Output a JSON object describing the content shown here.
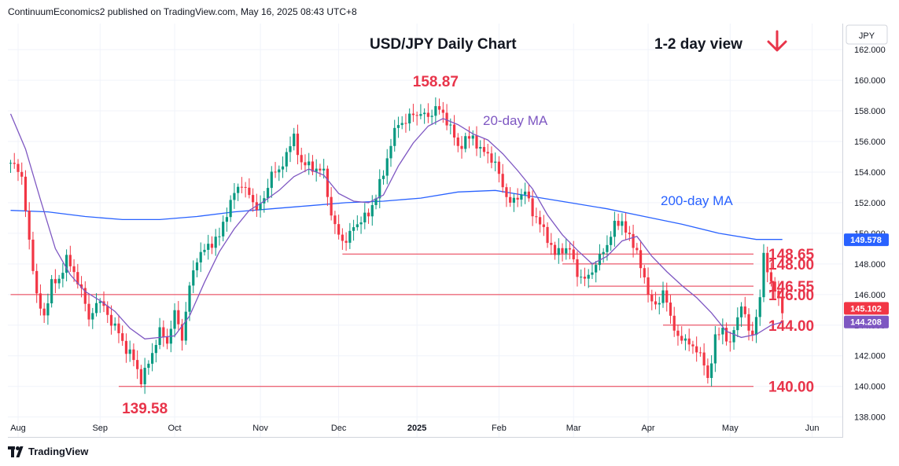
{
  "header": {
    "attribution": "ContinuumEconomics2 published on TradingView.com, May 16, 2025 08:43 UTC+8"
  },
  "footer": {
    "brand": "TradingView"
  },
  "chart_data": {
    "type": "candlestick",
    "title": "USD/JPY Daily Chart",
    "view_label": "1-2 day view",
    "view_arrow": "down",
    "currency": "JPY",
    "ylim": [
      136.7,
      163.7
    ],
    "y_ticks": [
      "138.000",
      "140.000",
      "142.000",
      "144.000",
      "146.000",
      "148.000",
      "150.000",
      "152.000",
      "154.000",
      "156.000",
      "158.000",
      "160.000",
      "162.000"
    ],
    "x_ticks": [
      {
        "label": "Aug",
        "index": 2,
        "bold": false
      },
      {
        "label": "Sep",
        "index": 24,
        "bold": false
      },
      {
        "label": "Oct",
        "index": 44,
        "bold": false
      },
      {
        "label": "Nov",
        "index": 67,
        "bold": false
      },
      {
        "label": "Dec",
        "index": 88,
        "bold": false
      },
      {
        "label": "2025",
        "index": 109,
        "bold": true
      },
      {
        "label": "Feb",
        "index": 131,
        "bold": false
      },
      {
        "label": "Mar",
        "index": 151,
        "bold": false
      },
      {
        "label": "Apr",
        "index": 171,
        "bold": false
      },
      {
        "label": "May",
        "index": 193,
        "bold": false
      },
      {
        "label": "Jun",
        "index": 215,
        "bold": false
      }
    ],
    "key_points": [
      [
        0,
        154.6
      ],
      [
        3,
        153.8
      ],
      [
        5,
        149.3
      ],
      [
        7,
        146.1
      ],
      [
        9,
        144.3
      ],
      [
        11,
        147.0
      ],
      [
        13,
        146.7
      ],
      [
        15,
        148.6
      ],
      [
        17,
        147.2
      ],
      [
        19,
        146.5
      ],
      [
        21,
        144.2
      ],
      [
        23,
        145.6
      ],
      [
        25,
        145.2
      ],
      [
        27,
        144.2
      ],
      [
        29,
        143.5
      ],
      [
        31,
        142.4
      ],
      [
        33,
        141.8
      ],
      [
        35,
        140.4
      ],
      [
        36,
        140.9
      ],
      [
        38,
        142.2
      ],
      [
        40,
        143.6
      ],
      [
        42,
        142.9
      ],
      [
        44,
        144.8
      ],
      [
        46,
        143.2
      ],
      [
        48,
        146.5
      ],
      [
        50,
        148.4
      ],
      [
        52,
        148.9
      ],
      [
        54,
        149.4
      ],
      [
        56,
        149.8
      ],
      [
        58,
        151.4
      ],
      [
        60,
        152.6
      ],
      [
        62,
        153.3
      ],
      [
        64,
        152.4
      ],
      [
        66,
        151.7
      ],
      [
        68,
        152.1
      ],
      [
        70,
        154.1
      ],
      [
        72,
        153.9
      ],
      [
        74,
        155.3
      ],
      [
        76,
        156.2
      ],
      [
        78,
        154.6
      ],
      [
        80,
        154.4
      ],
      [
        82,
        154.2
      ],
      [
        84,
        154.0
      ],
      [
        86,
        151.2
      ],
      [
        88,
        149.8
      ],
      [
        90,
        149.5
      ],
      [
        92,
        150.4
      ],
      [
        94,
        150.9
      ],
      [
        96,
        151.2
      ],
      [
        98,
        152.5
      ],
      [
        100,
        153.9
      ],
      [
        102,
        155.9
      ],
      [
        104,
        157.2
      ],
      [
        106,
        157.3
      ],
      [
        108,
        157.8
      ],
      [
        110,
        157.8
      ],
      [
        112,
        157.6
      ],
      [
        114,
        158.2
      ],
      [
        116,
        157.8
      ],
      [
        118,
        156.9
      ],
      [
        120,
        155.6
      ],
      [
        122,
        156.1
      ],
      [
        124,
        156.3
      ],
      [
        126,
        155.4
      ],
      [
        128,
        155.2
      ],
      [
        130,
        154.5
      ],
      [
        132,
        153.1
      ],
      [
        134,
        151.9
      ],
      [
        136,
        152.4
      ],
      [
        138,
        152.7
      ],
      [
        140,
        151.4
      ],
      [
        142,
        150.6
      ],
      [
        144,
        149.7
      ],
      [
        146,
        148.6
      ],
      [
        148,
        149.0
      ],
      [
        150,
        148.9
      ],
      [
        152,
        147.4
      ],
      [
        154,
        146.9
      ],
      [
        156,
        147.6
      ],
      [
        158,
        148.4
      ],
      [
        160,
        149.3
      ],
      [
        162,
        150.5
      ],
      [
        164,
        150.8
      ],
      [
        166,
        149.6
      ],
      [
        168,
        148.9
      ],
      [
        170,
        146.8
      ],
      [
        172,
        145.6
      ],
      [
        174,
        145.2
      ],
      [
        175,
        146.4
      ],
      [
        176,
        145.6
      ],
      [
        178,
        143.5
      ],
      [
        180,
        143.2
      ],
      [
        182,
        142.7
      ],
      [
        184,
        142.5
      ],
      [
        186,
        141.4
      ],
      [
        187,
        140.5
      ],
      [
        189,
        143.1
      ],
      [
        191,
        143.8
      ],
      [
        193,
        142.6
      ],
      [
        194,
        143.7
      ],
      [
        196,
        145.4
      ],
      [
        198,
        143.6
      ],
      [
        199,
        143.5
      ],
      [
        201,
        145.7
      ],
      [
        202,
        148.6
      ],
      [
        204,
        146.8
      ],
      [
        206,
        145.6
      ],
      [
        207,
        145.1
      ]
    ],
    "price_tag_last": {
      "value": 145.102,
      "label": "145.102",
      "color": "#f23645"
    },
    "ma20": {
      "name": "20-day MA",
      "color": "#7e57c2",
      "tag_value": 144.208,
      "tag_label": "144.208",
      "points": [
        [
          0,
          157.8
        ],
        [
          4,
          155.5
        ],
        [
          8,
          152.2
        ],
        [
          12,
          149.0
        ],
        [
          16,
          147.3
        ],
        [
          20,
          146.2
        ],
        [
          24,
          145.6
        ],
        [
          28,
          144.9
        ],
        [
          32,
          143.8
        ],
        [
          36,
          143.1
        ],
        [
          40,
          143.2
        ],
        [
          44,
          143.3
        ],
        [
          48,
          144.6
        ],
        [
          52,
          146.8
        ],
        [
          56,
          148.8
        ],
        [
          60,
          150.3
        ],
        [
          64,
          151.5
        ],
        [
          68,
          152.1
        ],
        [
          72,
          152.8
        ],
        [
          76,
          153.7
        ],
        [
          80,
          154.2
        ],
        [
          84,
          153.8
        ],
        [
          88,
          152.6
        ],
        [
          92,
          152.1
        ],
        [
          96,
          152.0
        ],
        [
          100,
          152.5
        ],
        [
          104,
          154.4
        ],
        [
          108,
          155.9
        ],
        [
          112,
          157.0
        ],
        [
          116,
          157.5
        ],
        [
          120,
          157.1
        ],
        [
          124,
          156.5
        ],
        [
          128,
          156.1
        ],
        [
          132,
          155.2
        ],
        [
          136,
          154.1
        ],
        [
          140,
          152.9
        ],
        [
          144,
          151.2
        ],
        [
          148,
          149.9
        ],
        [
          152,
          148.9
        ],
        [
          156,
          148.0
        ],
        [
          160,
          148.5
        ],
        [
          164,
          149.5
        ],
        [
          168,
          149.8
        ],
        [
          172,
          148.5
        ],
        [
          176,
          147.5
        ],
        [
          180,
          146.6
        ],
        [
          184,
          145.8
        ],
        [
          188,
          144.8
        ],
        [
          192,
          143.6
        ],
        [
          196,
          143.2
        ],
        [
          200,
          143.4
        ],
        [
          204,
          144.0
        ],
        [
          207,
          144.2
        ]
      ]
    },
    "ma200": {
      "name": "200-day MA",
      "color": "#2962ff",
      "tag_value": 149.578,
      "tag_label": "149.578",
      "points": [
        [
          0,
          151.5
        ],
        [
          10,
          151.4
        ],
        [
          20,
          151.1
        ],
        [
          30,
          150.9
        ],
        [
          40,
          150.9
        ],
        [
          50,
          151.1
        ],
        [
          60,
          151.4
        ],
        [
          70,
          151.6
        ],
        [
          80,
          151.8
        ],
        [
          90,
          152.0
        ],
        [
          100,
          152.1
        ],
        [
          110,
          152.3
        ],
        [
          120,
          152.7
        ],
        [
          130,
          152.8
        ],
        [
          140,
          152.4
        ],
        [
          150,
          152.0
        ],
        [
          160,
          151.6
        ],
        [
          170,
          151.1
        ],
        [
          180,
          150.6
        ],
        [
          190,
          150.0
        ],
        [
          200,
          149.6
        ],
        [
          207,
          149.6
        ]
      ]
    },
    "levels": [
      {
        "label": "148.65",
        "value": 148.65,
        "from": 89
      },
      {
        "label": "148.00",
        "value": 148.0,
        "from": 148
      },
      {
        "label": "146.55",
        "value": 146.55,
        "from": 155
      },
      {
        "label": "146.00",
        "value": 146.0,
        "from": 0
      },
      {
        "label": "144.00",
        "value": 144.0,
        "from": 175
      },
      {
        "label": "140.00",
        "value": 140.0,
        "from": 29
      }
    ],
    "annotations": [
      {
        "label": "158.87",
        "index": 114,
        "value": 158.87
      },
      {
        "label": "139.58",
        "index": 36,
        "value": 139.58
      }
    ],
    "colors": {
      "up": "#089981",
      "down": "#f23645",
      "level_line": "#e8344a",
      "level_text": "#e8344a",
      "grid": "#f0f3fa",
      "axis": "#131722"
    }
  }
}
